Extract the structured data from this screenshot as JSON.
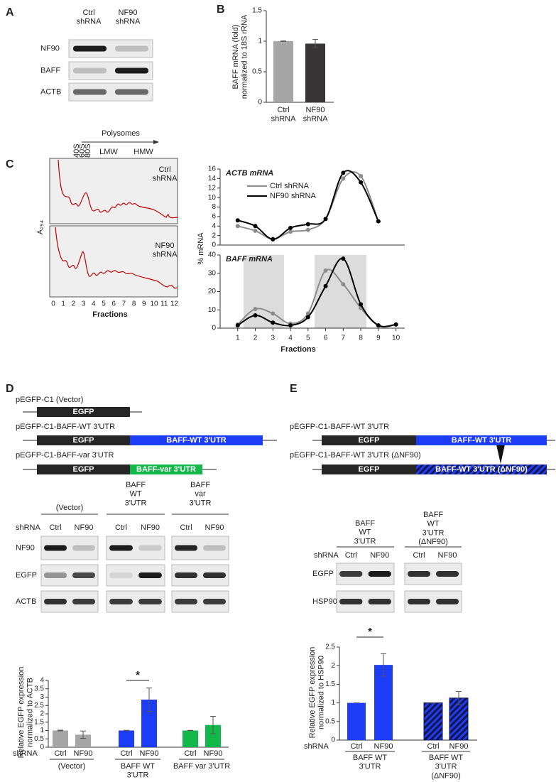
{
  "panel_labels": [
    "A",
    "B",
    "C",
    "D",
    "E"
  ],
  "panel_a": {
    "lanes": [
      "Ctrl shRNA",
      "NF90 shRNA"
    ],
    "rows": [
      "NF90",
      "BAFF",
      "ACTB"
    ]
  },
  "panel_c_profile": {
    "arrow_label": "Polysomes",
    "peaks": [
      "40S",
      "60S",
      "80S"
    ],
    "regions": [
      "LMW",
      "HMW"
    ],
    "samples": [
      "Ctrl shRNA",
      "NF90 shRNA"
    ],
    "ylabel": "A₂₅₄",
    "xlabel": "Fractions",
    "xticks": [
      0,
      1,
      2,
      3,
      4,
      5,
      6,
      7,
      8,
      9,
      10,
      11,
      12
    ]
  },
  "panel_d_constructs": [
    {
      "name": "pEGFP-C1 (Vector)",
      "parts": [
        "EGFP"
      ]
    },
    {
      "name": "pEGFP-C1-BAFF-WT 3'UTR",
      "parts": [
        "EGFP",
        "BAFF-WT 3'UTR"
      ]
    },
    {
      "name": "pEGFP-C1-BAFF-var 3'UTR",
      "parts": [
        "EGFP",
        "BAFF-var 3'UTR"
      ]
    }
  ],
  "panel_d_blot": {
    "groups": [
      "(Vector)",
      "BAFF WT 3'UTR",
      "BAFF var 3'UTR"
    ],
    "row_header": "shRNA",
    "lanes": [
      "Ctrl",
      "NF90"
    ],
    "rows": [
      "NF90",
      "EGFP",
      "ACTB"
    ]
  },
  "panel_e_constructs": [
    {
      "name": "pEGFP-C1-BAFF-WT 3'UTR",
      "parts": [
        "EGFP",
        "BAFF-WT 3'UTR"
      ]
    },
    {
      "name": "pEGFP-C1-BAFF-WT 3'UTR (ΔNF90)",
      "parts": [
        "EGFP",
        "BAFF-WT 3'UTR (ΔNF90)"
      ]
    }
  ],
  "panel_e_blot": {
    "groups": [
      "BAFF WT 3'UTR",
      "BAFF WT 3'UTR (ΔNF90)"
    ],
    "row_header": "shRNA",
    "lanes": [
      "Ctrl",
      "NF90"
    ],
    "rows": [
      "EGFP",
      "HSP90"
    ]
  },
  "chart_data": [
    {
      "type": "bar",
      "ylabel": "BAFF mRNA (fold) normalized to 18S rRNA",
      "categories": [
        "Ctrl shRNA",
        "NF90 shRNA"
      ],
      "values": [
        1,
        0.96
      ],
      "errors": [
        0.005,
        0.07
      ],
      "colors": [
        "#a6a6a6",
        "#363434"
      ],
      "ylim": [
        0,
        1.5
      ],
      "yticks": [
        0,
        0.5,
        1,
        1.5
      ]
    },
    {
      "type": "line",
      "title": "ACTB mRNA",
      "x": [
        1,
        2,
        3,
        4,
        5,
        6,
        7,
        8,
        9,
        10
      ],
      "xlim": [
        0,
        10.5
      ],
      "ylim": [
        0,
        16
      ],
      "yticks": [
        0,
        2,
        4,
        6,
        8,
        10,
        12,
        14,
        16
      ],
      "legend": "top-center",
      "series": [
        {
          "name": "Ctrl shRNA",
          "color": "#8c8c8c",
          "values": [
            4,
            3,
            1.3,
            2.8,
            3.2,
            5.5,
            14,
            14.5,
            5,
            null
          ]
        },
        {
          "name": "NF90 shRNA",
          "color": "#000000",
          "values": [
            5.2,
            4,
            1.2,
            3.6,
            4.4,
            5.5,
            15.2,
            13.2,
            5,
            null
          ]
        }
      ]
    },
    {
      "type": "line",
      "title": "BAFF mRNA",
      "xlabel": "Fractions",
      "ylabel": "% mRNA",
      "x": [
        1,
        2,
        3,
        4,
        5,
        6,
        7,
        8,
        9,
        10
      ],
      "xlim": [
        0,
        10.5
      ],
      "xticks": [
        1,
        2,
        3,
        4,
        5,
        6,
        7,
        8,
        9,
        10
      ],
      "ylim": [
        0,
        40
      ],
      "yticks": [
        0,
        10,
        20,
        30,
        40
      ],
      "series": [
        {
          "name": "Ctrl shRNA",
          "color": "#8c8c8c",
          "values": [
            2,
            10.5,
            8,
            2.5,
            8,
            31.5,
            24,
            11,
            1.5,
            2
          ]
        },
        {
          "name": "NF90 shRNA",
          "color": "#000000",
          "values": [
            1.5,
            7,
            3,
            1.5,
            6,
            23,
            38,
            13,
            1.5,
            2
          ]
        }
      ]
    },
    {
      "type": "bar",
      "ylabel": "Relative EGFP expression normalized to ACTB",
      "category_axis_label": "shRNA",
      "categories": [
        "Ctrl",
        "NF90",
        "Ctrl",
        "NF90",
        "Ctrl",
        "NF90"
      ],
      "groups": [
        "(Vector)",
        "BAFF WT 3'UTR",
        "BAFF var 3'UTR"
      ],
      "values": [
        1,
        0.75,
        1,
        2.85,
        1,
        1.33
      ],
      "errors": [
        0.02,
        0.22,
        0.01,
        0.7,
        0.01,
        0.52
      ],
      "colors": [
        "#a6a6a6",
        "#a6a6a6",
        "#1c3cf5",
        "#1c3cf5",
        "#12b84a",
        "#12b84a"
      ],
      "ylim": [
        0,
        4
      ],
      "yticks": [
        0,
        0.5,
        1,
        1.5,
        2,
        2.5,
        3,
        3.5,
        4
      ],
      "annotations": [
        "*"
      ]
    },
    {
      "type": "bar",
      "ylabel": "Relative EGFP expression normalized to HSP90",
      "category_axis_label": "shRNA",
      "categories": [
        "Ctrl",
        "NF90",
        "Ctrl",
        "NF90"
      ],
      "groups": [
        "BAFF WT 3'UTR",
        "BAFF WT 3'UTR (ΔNF90)"
      ],
      "values": [
        1,
        2.02,
        1,
        1.13
      ],
      "errors": [
        0,
        0.3,
        0,
        0.18
      ],
      "colors": [
        "#1c3cf5",
        "#1c3cf5",
        "#1c3cf5",
        "#1c3cf5"
      ],
      "hatched": [
        false,
        false,
        true,
        true
      ],
      "ylim": [
        0,
        2.5
      ],
      "yticks": [
        0,
        0.5,
        1,
        1.5,
        2,
        2.5
      ],
      "annotations": [
        "*"
      ]
    }
  ]
}
